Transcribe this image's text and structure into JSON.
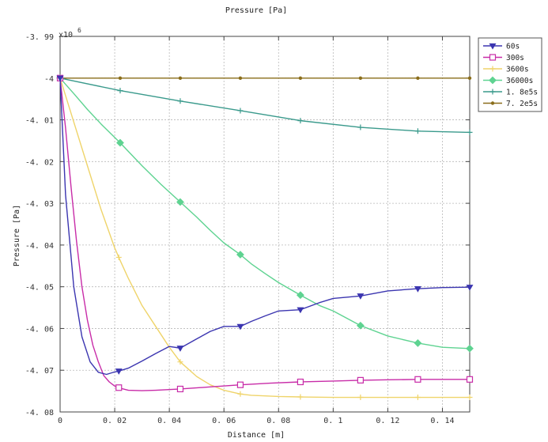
{
  "chart_data": {
    "type": "line",
    "title": "Pressure [Pa]",
    "xlabel": "Distance [m]",
    "ylabel": "Pressure [Pa]",
    "exponent_label": "x10",
    "exponent_power": "6",
    "xlim": [
      0,
      0.15
    ],
    "ylim": [
      -4.08,
      -3.99
    ],
    "x_ticks": [
      0,
      0.02,
      0.04,
      0.06,
      0.08,
      0.1,
      0.12,
      0.14
    ],
    "x_tick_labels": [
      "0",
      "0. 02",
      "0. 04",
      "0. 06",
      "0. 08",
      "0. 1",
      "0. 12",
      "0. 14"
    ],
    "y_ticks": [
      -3.99,
      -4,
      -4.01,
      -4.02,
      -4.03,
      -4.04,
      -4.05,
      -4.06,
      -4.07,
      -4.08
    ],
    "y_tick_labels": [
      "-3. 99",
      "-4",
      "-4. 01",
      "-4. 02",
      "-4. 03",
      "-4. 04",
      "-4. 05",
      "-4. 06",
      "-4. 07",
      "-4. 08"
    ],
    "grid": true,
    "legend_position": "outside-top-right",
    "series": [
      {
        "name": "60s",
        "color": "#3b35b0",
        "marker": "triangle-down",
        "x": [
          0,
          0.002,
          0.005,
          0.008,
          0.011,
          0.014,
          0.017,
          0.0195,
          0.0215,
          0.025,
          0.03,
          0.035,
          0.04,
          0.044,
          0.05,
          0.055,
          0.06,
          0.066,
          0.07,
          0.075,
          0.08,
          0.088,
          0.095,
          0.1,
          0.11,
          0.12,
          0.13,
          0.14,
          0.15
        ],
        "values": [
          -4.0,
          -4.028,
          -4.05,
          -4.062,
          -4.068,
          -4.0705,
          -4.071,
          -4.0705,
          -4.0702,
          -4.0695,
          -4.0678,
          -4.066,
          -4.0643,
          -4.0647,
          -4.0625,
          -4.0607,
          -4.0595,
          -4.0595,
          -4.0583,
          -4.057,
          -4.0558,
          -4.0555,
          -4.0538,
          -4.0528,
          -4.0522,
          -4.051,
          -4.0505,
          -4.0502,
          -4.0501
        ]
      },
      {
        "name": "300s",
        "color": "#c82ca8",
        "marker": "square",
        "x": [
          0,
          0.002,
          0.004,
          0.006,
          0.008,
          0.01,
          0.012,
          0.014,
          0.016,
          0.018,
          0.02,
          0.022,
          0.025,
          0.03,
          0.035,
          0.044,
          0.055,
          0.066,
          0.077,
          0.088,
          0.1,
          0.11,
          0.12,
          0.131,
          0.14,
          0.15
        ],
        "values": [
          -4.0,
          -4.012,
          -4.026,
          -4.039,
          -4.05,
          -4.058,
          -4.064,
          -4.068,
          -4.0713,
          -4.0728,
          -4.0738,
          -4.0743,
          -4.0748,
          -4.0749,
          -4.0748,
          -4.0745,
          -4.074,
          -4.0735,
          -4.0731,
          -4.0728,
          -4.0726,
          -4.0724,
          -4.0723,
          -4.0722,
          -4.0722,
          -4.0722
        ]
      },
      {
        "name": "3600s",
        "color": "#efd46a",
        "marker": "plus",
        "x": [
          0,
          0.005,
          0.01,
          0.015,
          0.02,
          0.022,
          0.025,
          0.03,
          0.035,
          0.04,
          0.044,
          0.05,
          0.055,
          0.06,
          0.066,
          0.07,
          0.08,
          0.088,
          0.1,
          0.11,
          0.12,
          0.131,
          0.14,
          0.15
        ],
        "values": [
          -4.0,
          -4.0105,
          -4.021,
          -4.0315,
          -4.0407,
          -4.0437,
          -4.048,
          -4.0545,
          -4.0595,
          -4.0645,
          -4.068,
          -4.0715,
          -4.0735,
          -4.0748,
          -4.0757,
          -4.076,
          -4.0763,
          -4.0764,
          -4.0765,
          -4.0765,
          -4.0765,
          -4.0765,
          -4.0765,
          -4.0765
        ]
      },
      {
        "name": "36000s",
        "color": "#5ed391",
        "marker": "diamond",
        "x": [
          0,
          0.005,
          0.01,
          0.015,
          0.022,
          0.03,
          0.037,
          0.044,
          0.05,
          0.055,
          0.06,
          0.066,
          0.07,
          0.075,
          0.08,
          0.088,
          0.095,
          0.1,
          0.11,
          0.12,
          0.131,
          0.14,
          0.15
        ],
        "values": [
          -4.0,
          -4.0037,
          -4.0075,
          -4.011,
          -4.0155,
          -4.021,
          -4.0255,
          -4.0297,
          -4.0333,
          -4.0365,
          -4.0395,
          -4.0423,
          -4.0445,
          -4.0468,
          -4.049,
          -4.052,
          -4.0545,
          -4.0558,
          -4.0593,
          -4.0618,
          -4.0635,
          -4.0645,
          -4.0648
        ]
      },
      {
        "name": "1. 8e5s",
        "color": "#3a9a8c",
        "marker": "plus",
        "x": [
          0,
          0.022,
          0.044,
          0.066,
          0.088,
          0.11,
          0.131,
          0.15
        ],
        "values": [
          -4.0,
          -4.003,
          -4.0055,
          -4.0078,
          -4.0102,
          -4.0118,
          -4.0127,
          -4.013
        ]
      },
      {
        "name": "7. 2e5s",
        "color": "#8a6d1a",
        "marker": "dot",
        "x": [
          0,
          0.022,
          0.044,
          0.066,
          0.088,
          0.11,
          0.131,
          0.15
        ],
        "values": [
          -4.0,
          -4.0,
          -4.0,
          -4.0,
          -4.0,
          -4.0,
          -4.0,
          -4.0
        ]
      }
    ],
    "marker_x": {
      "60s": [
        0,
        0.0215,
        0.044,
        0.066,
        0.088,
        0.11,
        0.131,
        0.15
      ],
      "300s": [
        0,
        0.0215,
        0.044,
        0.066,
        0.088,
        0.11,
        0.131,
        0.15
      ],
      "3600s": [
        0,
        0.0215,
        0.044,
        0.066,
        0.088,
        0.11,
        0.131,
        0.15
      ],
      "36000s": [
        0,
        0.022,
        0.044,
        0.066,
        0.088,
        0.11,
        0.131,
        0.15
      ],
      "1. 8e5s": [
        0,
        0.022,
        0.044,
        0.066,
        0.088,
        0.11,
        0.131,
        0.15
      ],
      "7. 2e5s": [
        0,
        0.022,
        0.044,
        0.066,
        0.088,
        0.11,
        0.131,
        0.15
      ]
    }
  }
}
